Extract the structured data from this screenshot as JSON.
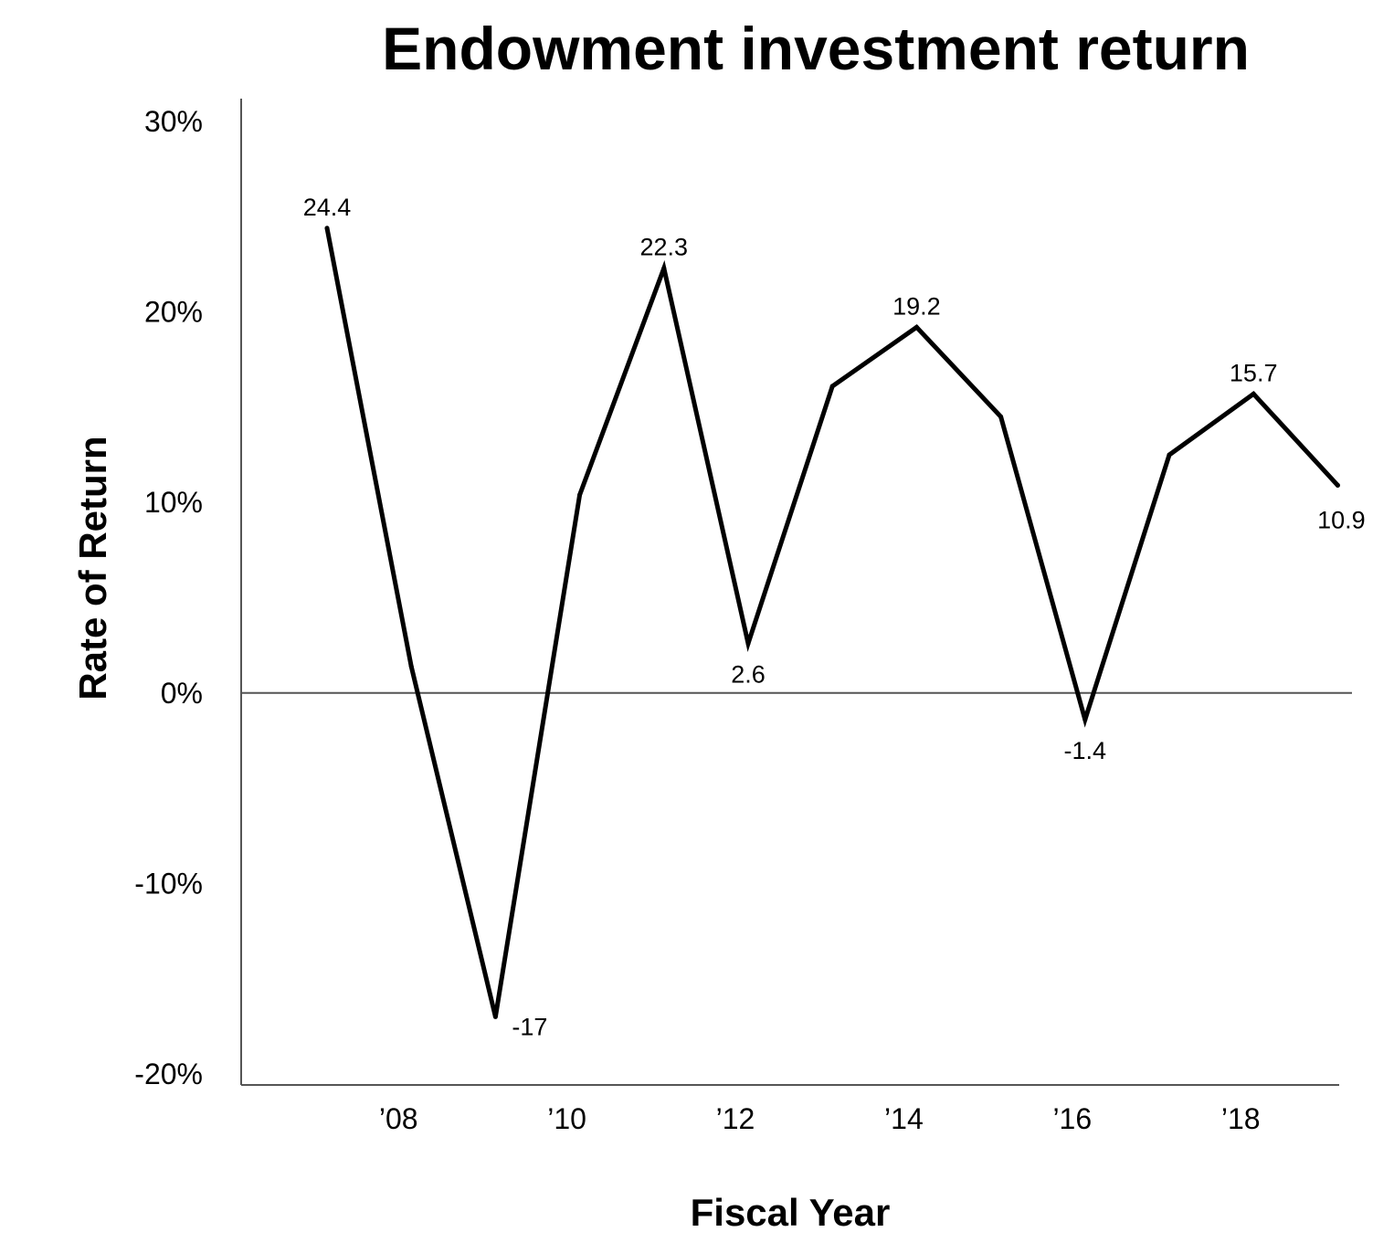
{
  "chart_data": {
    "type": "line",
    "title": "Endowment investment return",
    "xlabel": "Fiscal Year",
    "ylabel": "Rate of Return",
    "x": [
      2007,
      2008,
      2009,
      2010,
      2011,
      2012,
      2013,
      2014,
      2015,
      2016,
      2017,
      2018,
      2019
    ],
    "x_ticks": [
      {
        "value": 2008,
        "label": "’08"
      },
      {
        "value": 2010,
        "label": "’10"
      },
      {
        "value": 2012,
        "label": "’12"
      },
      {
        "value": 2014,
        "label": "’14"
      },
      {
        "value": 2016,
        "label": "’16"
      },
      {
        "value": 2018,
        "label": "’18"
      }
    ],
    "y_ticks": [
      {
        "value": 30,
        "label": "30%"
      },
      {
        "value": 20,
        "label": "20%"
      },
      {
        "value": 10,
        "label": "10%"
      },
      {
        "value": 0,
        "label": "0%"
      },
      {
        "value": -10,
        "label": "-10%"
      },
      {
        "value": -20,
        "label": "-20%"
      }
    ],
    "ylim": [
      -20,
      30
    ],
    "xlim": [
      2006,
      2019
    ],
    "grid": false,
    "zero_line": true,
    "series": [
      {
        "color": "#000000",
        "values": [
          24.4,
          1.4,
          -17,
          10.4,
          22.3,
          2.6,
          16.1,
          19.2,
          14.5,
          -1.4,
          12.5,
          15.7,
          10.9
        ]
      }
    ],
    "data_labels": [
      {
        "index": 0,
        "text": "24.4",
        "position": "above"
      },
      {
        "index": 2,
        "text": "-17",
        "position": "right"
      },
      {
        "index": 4,
        "text": "22.3",
        "position": "above"
      },
      {
        "index": 5,
        "text": "2.6",
        "position": "below"
      },
      {
        "index": 7,
        "text": "19.2",
        "position": "above"
      },
      {
        "index": 9,
        "text": "-1.4",
        "position": "below"
      },
      {
        "index": 11,
        "text": "15.7",
        "position": "above"
      },
      {
        "index": 12,
        "text": "10.9",
        "position": "below"
      }
    ]
  }
}
